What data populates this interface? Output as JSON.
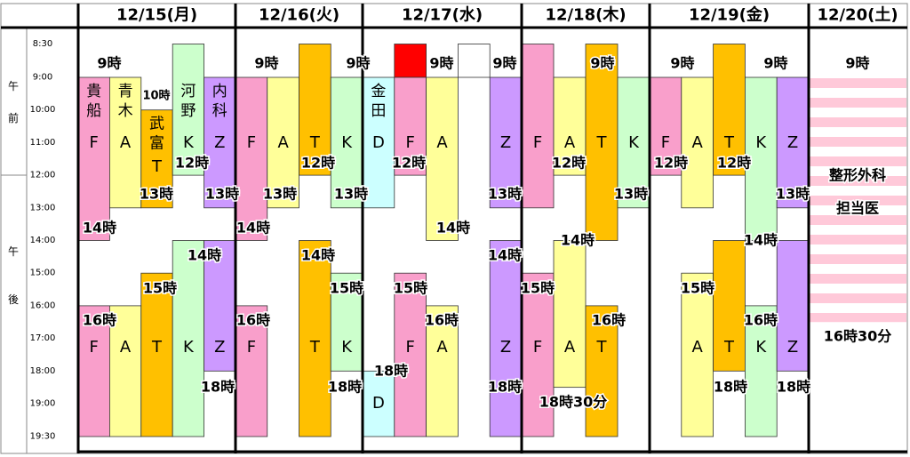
{
  "ampm": {
    "am": [
      "午",
      "前"
    ],
    "pm": [
      "午",
      "後"
    ]
  },
  "times": [
    {
      "value": 8.5,
      "label": "8:30"
    },
    {
      "value": 9,
      "label": "9:00"
    },
    {
      "value": 10,
      "label": "10:00"
    },
    {
      "value": 11,
      "label": "11:00"
    },
    {
      "value": 12,
      "label": "12:00"
    },
    {
      "value": 13,
      "label": "13:00"
    },
    {
      "value": 14,
      "label": "14:00"
    },
    {
      "value": 15,
      "label": "15:00"
    },
    {
      "value": 16,
      "label": "16:00"
    },
    {
      "value": 17,
      "label": "17:00"
    },
    {
      "value": 18,
      "label": "18:00"
    },
    {
      "value": 19,
      "label": "19:00"
    },
    {
      "value": 19.5,
      "label": "19:30"
    }
  ],
  "days": [
    {
      "date": "12/15(月)",
      "blocks": [
        {
          "col": 0,
          "start": 9,
          "end": 14,
          "color": "#f99fcb",
          "letter": "F",
          "name": "貴船"
        },
        {
          "col": 0,
          "start": 16,
          "end": 19.5,
          "color": "#f99fcb",
          "letter": "F"
        },
        {
          "col": 1,
          "start": 9,
          "end": 13,
          "color": "#ffff99",
          "letter": "A",
          "name": "青木"
        },
        {
          "col": 1,
          "start": 16,
          "end": 19.5,
          "color": "#ffff99",
          "letter": "A"
        },
        {
          "col": 2,
          "start": 10,
          "end": 13,
          "color": "#ffc000",
          "letter": "T",
          "name": "武富"
        },
        {
          "col": 2,
          "start": 15,
          "end": 19.5,
          "color": "#ffc000",
          "letter": "T"
        },
        {
          "col": 3,
          "start": 8.5,
          "end": 12,
          "color": "#ccffcc",
          "letter": "K",
          "name": "河野"
        },
        {
          "col": 3,
          "start": 14,
          "end": 19.5,
          "color": "#ccffcc",
          "letter": "K"
        },
        {
          "col": 4,
          "start": 9,
          "end": 13,
          "color": "#cc99ff",
          "letter": "Z",
          "name": "内科"
        },
        {
          "col": 4,
          "start": 14,
          "end": 18,
          "color": "#cc99ff",
          "letter": "Z"
        }
      ],
      "labels": [
        "9時",
        "10時",
        "12時",
        "13時",
        "13時",
        "14時",
        "14時",
        "15時",
        "16時",
        "18時"
      ]
    },
    {
      "date": "12/16(火)",
      "blocks": [
        {
          "col": 0,
          "start": 9,
          "end": 14,
          "color": "#f99fcb",
          "letter": "F"
        },
        {
          "col": 0,
          "start": 16,
          "end": 19.5,
          "color": "#f99fcb",
          "letter": "F"
        },
        {
          "col": 1,
          "start": 9,
          "end": 13,
          "color": "#ffff99",
          "letter": "A"
        },
        {
          "col": 2,
          "start": 8.5,
          "end": 12,
          "color": "#ffc000",
          "letter": "T"
        },
        {
          "col": 2,
          "start": 14,
          "end": 19.5,
          "color": "#ffc000",
          "letter": "T"
        },
        {
          "col": 3,
          "start": 9,
          "end": 13,
          "color": "#ccffcc",
          "letter": "K"
        },
        {
          "col": 3,
          "start": 15,
          "end": 18,
          "color": "#ccffcc",
          "letter": "K"
        }
      ],
      "labels": [
        "9時",
        "9時",
        "12時",
        "13時",
        "13時",
        "14時",
        "14時",
        "15時",
        "16時",
        "18時"
      ]
    },
    {
      "date": "12/17(水)",
      "blocks": [
        {
          "col": 0,
          "start": 9,
          "end": 13,
          "color": "#ccffff",
          "letter": "D",
          "name": "金田"
        },
        {
          "col": 0,
          "start": 18,
          "end": 19.5,
          "color": "#ccffff",
          "letter": "D"
        },
        {
          "col": 1,
          "start": 8.5,
          "end": 9,
          "color": "#ff0000"
        },
        {
          "col": 1,
          "start": 9,
          "end": 12,
          "color": "#f99fcb",
          "letter": "F"
        },
        {
          "col": 1,
          "start": 15,
          "end": 19.5,
          "color": "#f99fcb",
          "letter": "F"
        },
        {
          "col": 2,
          "start": 9,
          "end": 14,
          "color": "#ffff99",
          "letter": "A"
        },
        {
          "col": 2,
          "start": 16,
          "end": 19.5,
          "color": "#ffff99",
          "letter": "A"
        },
        {
          "col": 3,
          "start": 8.5,
          "end": 9,
          "color": "#ffffff"
        },
        {
          "col": 4,
          "start": 9,
          "end": 13,
          "color": "#cc99ff",
          "letter": "Z"
        },
        {
          "col": 4,
          "start": 14,
          "end": 19.5,
          "color": "#cc99ff",
          "letter": "Z"
        }
      ],
      "labels": [
        "9時",
        "9時",
        "12時",
        "13時",
        "14時",
        "14時",
        "15時",
        "16時",
        "18時",
        "18時"
      ]
    },
    {
      "date": "12/18(木)",
      "blocks": [
        {
          "col": 0,
          "start": 8.5,
          "end": 13,
          "color": "#f99fcb",
          "letter": "F"
        },
        {
          "col": 0,
          "start": 15,
          "end": 19.5,
          "color": "#f99fcb",
          "letter": "F"
        },
        {
          "col": 1,
          "start": 9,
          "end": 12,
          "color": "#ffff99",
          "letter": "A"
        },
        {
          "col": 1,
          "start": 14,
          "end": 18.5,
          "color": "#ffff99",
          "letter": "A"
        },
        {
          "col": 2,
          "start": 8.5,
          "end": 14,
          "color": "#ffc000",
          "letter": "T"
        },
        {
          "col": 2,
          "start": 16,
          "end": 19.5,
          "color": "#ffc000",
          "letter": "T"
        },
        {
          "col": 3,
          "start": 9,
          "end": 13,
          "color": "#ccffcc",
          "letter": "K"
        }
      ],
      "labels": [
        "9時",
        "12時",
        "13時",
        "14時",
        "15時",
        "16時",
        "18時30分"
      ]
    },
    {
      "date": "12/19(金)",
      "blocks": [
        {
          "col": 0,
          "start": 9,
          "end": 12,
          "color": "#f99fcb",
          "letter": "F"
        },
        {
          "col": 1,
          "start": 9,
          "end": 13,
          "color": "#ffff99",
          "letter": "A"
        },
        {
          "col": 1,
          "start": 15,
          "end": 19.5,
          "color": "#ffff99",
          "letter": "A"
        },
        {
          "col": 2,
          "start": 8.5,
          "end": 12,
          "color": "#ffc000",
          "letter": "T"
        },
        {
          "col": 2,
          "start": 14,
          "end": 18,
          "color": "#ffc000",
          "letter": "T"
        },
        {
          "col": 3,
          "start": 9,
          "end": 14,
          "color": "#ccffcc",
          "letter": "K"
        },
        {
          "col": 3,
          "start": 16,
          "end": 19.5,
          "color": "#ccffcc",
          "letter": "K"
        },
        {
          "col": 4,
          "start": 9,
          "end": 13,
          "color": "#cc99ff",
          "letter": "Z"
        },
        {
          "col": 4,
          "start": 14,
          "end": 18,
          "color": "#cc99ff",
          "letter": "Z"
        }
      ],
      "labels": [
        "9時",
        "9時",
        "12時",
        "12時",
        "13時",
        "14時",
        "15時",
        "16時",
        "18時",
        "18時"
      ]
    },
    {
      "date": "12/20(土)",
      "blocks": [
        {
          "col": 0,
          "start": 9,
          "end": 16.5,
          "color": "#ffc9d9",
          "striped": true,
          "title": "整形外科",
          "subtitle": "担当医"
        }
      ],
      "labels": [
        "9時",
        "16時30分"
      ]
    }
  ]
}
